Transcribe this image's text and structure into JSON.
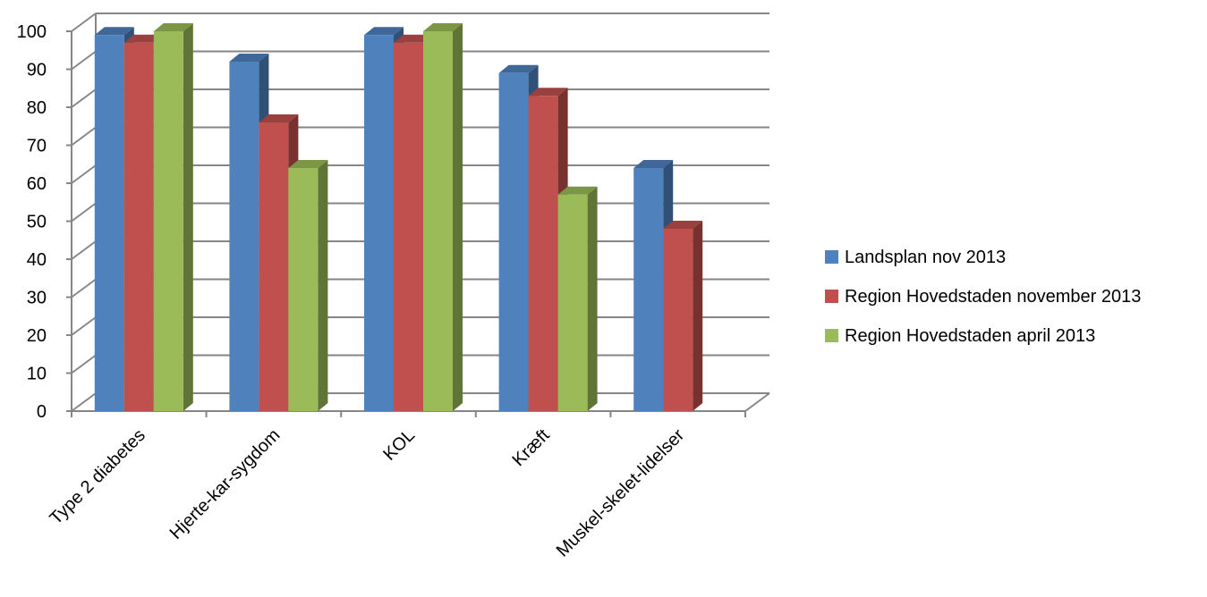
{
  "chart_data": {
    "type": "bar",
    "categories": [
      "Type 2 diabetes",
      "Hjerte-kar-sygdom",
      "KOL",
      "Kræft",
      "Muskel-skelet-lidelser"
    ],
    "series": [
      {
        "name": "Landsplan nov 2013",
        "values": [
          99,
          92,
          99,
          89,
          64
        ],
        "color": "#4F81BD"
      },
      {
        "name": "Region Hovedstaden november 2013",
        "values": [
          97,
          76,
          97,
          83,
          48
        ],
        "color": "#C0504D"
      },
      {
        "name": "Region Hovedstaden april 2013",
        "values": [
          100,
          64,
          100,
          57,
          null
        ],
        "color": "#9BBB59"
      }
    ],
    "yticks": [
      "0",
      "10",
      "20",
      "30",
      "40",
      "50",
      "60",
      "70",
      "80",
      "90",
      "100"
    ],
    "ylim": [
      0,
      100
    ],
    "grid": true,
    "style": "3d-clustered-column",
    "legend_position": "right"
  }
}
